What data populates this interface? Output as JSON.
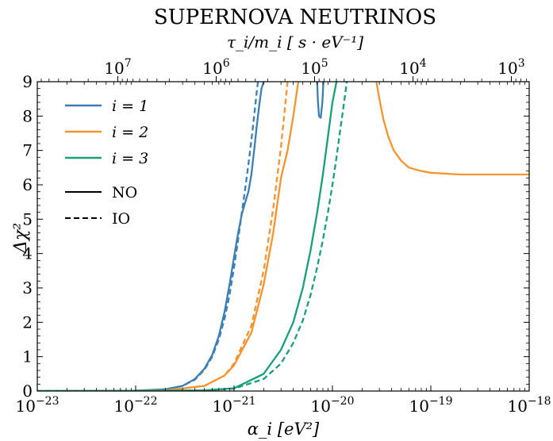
{
  "chart_data": {
    "type": "line",
    "title": "SUPERNOVA NEUTRINOS",
    "xlabel": "α_i [eV²]",
    "ylabel": "Δχ²",
    "top_xlabel": "τ_i/m_i [ s · eV⁻¹]",
    "x_scale": "log",
    "xlim": [
      1e-23,
      1e-18
    ],
    "ylim": [
      0,
      9
    ],
    "x_ticks": [
      {
        "value": 1e-23,
        "base": "10",
        "exp": "−23"
      },
      {
        "value": 1e-22,
        "base": "10",
        "exp": "−22"
      },
      {
        "value": 1e-21,
        "base": "10",
        "exp": "−21"
      },
      {
        "value": 1e-20,
        "base": "10",
        "exp": "−20"
      },
      {
        "value": 1e-19,
        "base": "10",
        "exp": "−19"
      },
      {
        "value": 1e-18,
        "base": "10",
        "exp": "−18"
      }
    ],
    "y_ticks": [
      0,
      1,
      2,
      3,
      4,
      5,
      6,
      7,
      8,
      9
    ],
    "top_ticks": [
      {
        "value": 10000000.0,
        "base": "10",
        "exp": "7"
      },
      {
        "value": 1000000.0,
        "base": "10",
        "exp": "6"
      },
      {
        "value": 100000.0,
        "base": "10",
        "exp": "5"
      },
      {
        "value": 10000.0,
        "base": "10",
        "exp": "4"
      },
      {
        "value": 1000.0,
        "base": "10",
        "exp": "3"
      }
    ],
    "top_axis_relation": "tau_over_m = 6.582e-16 / alpha",
    "grid": false,
    "legend_position": "top-left",
    "legend": {
      "colors": [
        {
          "label": "i = 1",
          "color": "#3b7fb6"
        },
        {
          "label": "i = 2",
          "color": "#f7932c"
        },
        {
          "label": "i = 3",
          "color": "#15a07a"
        }
      ],
      "styles": [
        {
          "label": "NO",
          "dash": "solid"
        },
        {
          "label": "IO",
          "dash": "dashed"
        }
      ]
    },
    "series": [
      {
        "color": "#3b7fb6",
        "dash": "solid",
        "x": [
          1e-23,
          1e-22,
          2e-22,
          3e-22,
          4e-22,
          5e-22,
          6e-22,
          7e-22,
          8e-22,
          9e-22,
          1e-21,
          1.1e-21,
          1.2e-21,
          1.3e-21,
          1.4e-21,
          1.5e-21,
          1.6e-21,
          1.7e-21,
          1.8e-21,
          1.9e-21,
          2e-21
        ],
        "y": [
          0,
          0.01,
          0.05,
          0.15,
          0.35,
          0.65,
          1.05,
          1.6,
          2.3,
          3.1,
          3.9,
          4.6,
          5.15,
          5.5,
          5.8,
          6.3,
          7.0,
          7.7,
          8.3,
          8.8,
          9.0
        ]
      },
      {
        "color": "#3b7fb6",
        "dash": "solid",
        "x": [
          7e-21,
          7.1e-21,
          7.3e-21,
          7.6e-21,
          7.9e-21,
          8.1e-21
        ],
        "y": [
          9.0,
          8.5,
          8.0,
          7.95,
          8.4,
          9.0
        ]
      },
      {
        "color": "#3b7fb6",
        "dash": "dashed",
        "x": [
          1e-23,
          1e-22,
          2e-22,
          3e-22,
          4e-22,
          5e-22,
          6e-22,
          7e-22,
          8e-22,
          9e-22,
          1e-21,
          1.1e-21,
          1.2e-21,
          1.3e-21,
          1.4e-21,
          1.5e-21,
          1.6e-21,
          1.7e-21,
          1.75e-21
        ],
        "y": [
          0,
          0.01,
          0.05,
          0.15,
          0.33,
          0.62,
          1.0,
          1.5,
          2.1,
          2.8,
          3.6,
          4.4,
          5.2,
          5.9,
          6.6,
          7.3,
          8.0,
          8.7,
          9.0
        ]
      },
      {
        "color": "#f7932c",
        "dash": "solid",
        "x": [
          1e-23,
          1e-22,
          2e-22,
          5e-22,
          8e-22,
          1e-21,
          1.5e-21,
          2e-21,
          2.5e-21,
          3e-21,
          3.5e-21,
          4e-21,
          4.5e-21
        ],
        "y": [
          0,
          0.005,
          0.02,
          0.15,
          0.45,
          0.75,
          1.7,
          3.1,
          4.6,
          6.2,
          7.0,
          8.0,
          9.0
        ]
      },
      {
        "color": "#f7932c",
        "dash": "dashed",
        "x": [
          1e-23,
          1e-22,
          2e-22,
          5e-22,
          8e-22,
          1e-21,
          1.5e-21,
          2e-21,
          2.5e-21,
          3e-21,
          3.5e-21
        ],
        "y": [
          0,
          0.005,
          0.02,
          0.15,
          0.45,
          0.8,
          1.9,
          3.5,
          5.3,
          7.1,
          9.0
        ]
      },
      {
        "color": "#f7932c",
        "dash": "solid",
        "x": [
          2.8e-20,
          3e-20,
          3.3e-20,
          3.7e-20,
          4.2e-20,
          5e-20,
          6e-20,
          8e-20,
          1e-19,
          1.5e-19,
          2e-19,
          3e-19,
          5e-19,
          1e-18
        ],
        "y": [
          9.0,
          8.5,
          7.9,
          7.4,
          7.0,
          6.7,
          6.5,
          6.4,
          6.35,
          6.32,
          6.3,
          6.3,
          6.3,
          6.3
        ]
      },
      {
        "color": "#15a07a",
        "dash": "solid",
        "x": [
          1e-23,
          1e-22,
          5e-22,
          1e-21,
          2e-21,
          3e-21,
          4e-21,
          5e-21,
          6e-21,
          7e-21,
          8e-21,
          9e-21,
          1e-20,
          1.1e-20
        ],
        "y": [
          0,
          0.002,
          0.02,
          0.08,
          0.5,
          1.2,
          2.0,
          3.0,
          4.1,
          5.2,
          6.3,
          7.4,
          8.4,
          9.0
        ]
      },
      {
        "color": "#15a07a",
        "dash": "dashed",
        "x": [
          1e-23,
          1e-22,
          5e-22,
          1e-21,
          2e-21,
          3e-21,
          4e-21,
          5e-21,
          6e-21,
          7e-21,
          8e-21,
          9e-21,
          1e-20,
          1.1e-20,
          1.2e-20,
          1.3e-20,
          1.4e-20
        ],
        "y": [
          0,
          0.002,
          0.02,
          0.07,
          0.35,
          0.8,
          1.4,
          2.05,
          2.8,
          3.6,
          4.4,
          5.2,
          6.0,
          6.8,
          7.6,
          8.3,
          9.0
        ]
      }
    ]
  }
}
